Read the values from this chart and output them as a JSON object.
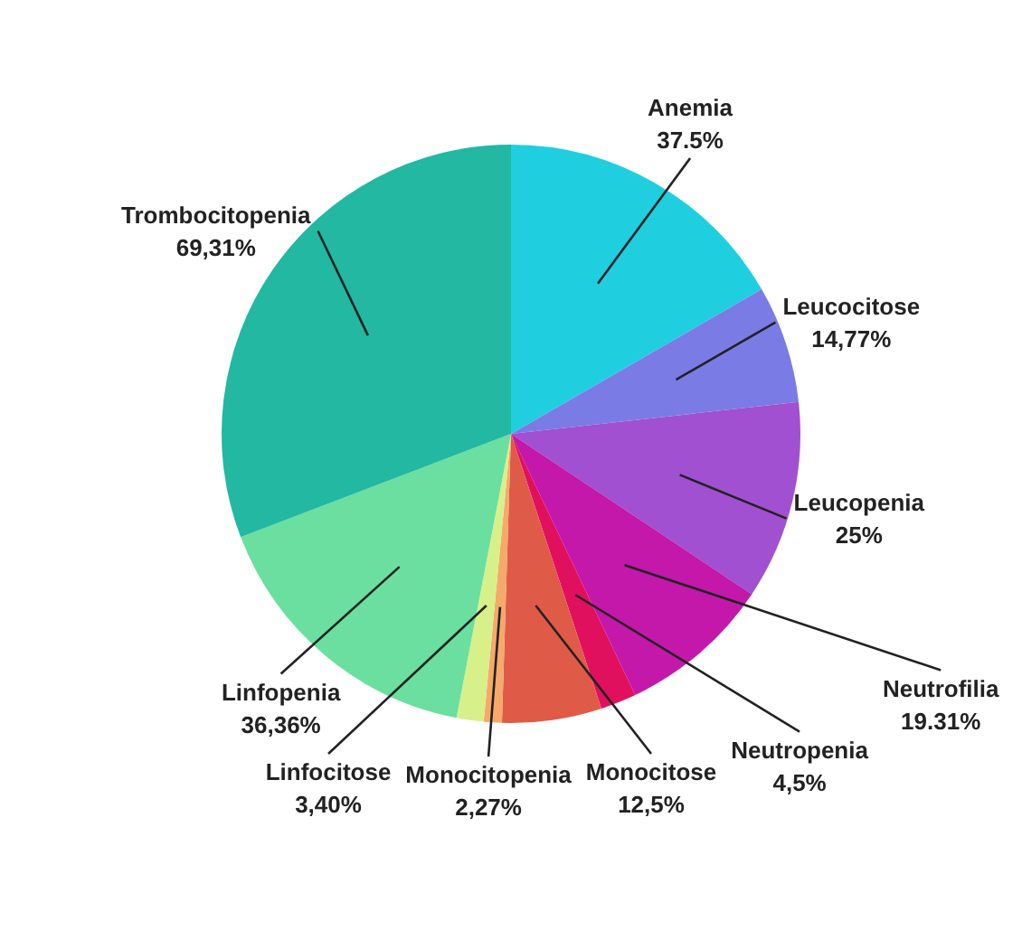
{
  "chart_data": {
    "type": "pie",
    "categories": [
      "Anemia",
      "Leucocitose",
      "Leucopenia",
      "Neutrofilia",
      "Neutropenia",
      "Monocitose",
      "Monocitopenia",
      "Linfocitose",
      "Linfopenia",
      "Trombocitopenia"
    ],
    "values": [
      37.5,
      14.77,
      25,
      19.31,
      4.5,
      12.5,
      2.27,
      3.4,
      36.36,
      69.31
    ],
    "value_labels": [
      "37.5%",
      "14,77%",
      "25%",
      "19.31%",
      "4,5%",
      "12,5%",
      "2,27%",
      "3,40%",
      "36,36%",
      "69,31%"
    ],
    "colors": [
      "#1fcfdf",
      "#7b7be6",
      "#a050d0",
      "#c318a9",
      "#e0105f",
      "#e05a48",
      "#f5a96a",
      "#d8f08a",
      "#6adfa0",
      "#22b8a2"
    ]
  }
}
